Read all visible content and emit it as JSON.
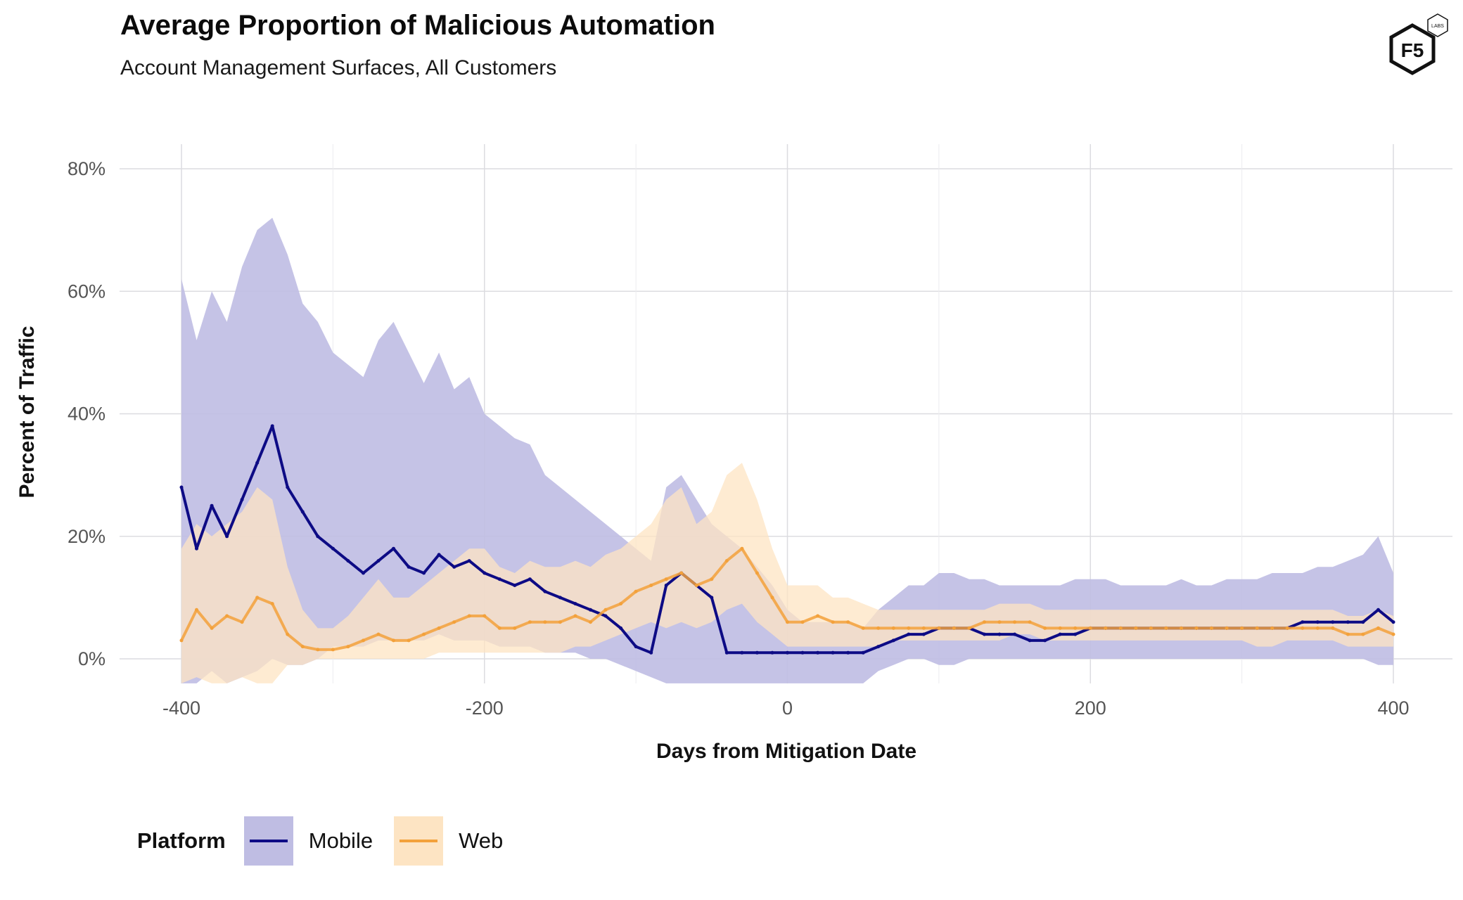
{
  "title": "Average Proportion of Malicious Automation",
  "subtitle": "Account Management Surfaces, All Customers",
  "logo": {
    "text": "F5",
    "badge": "LABS",
    "icon": "f5-labs-hexagon-logo"
  },
  "colors": {
    "mobile_line": "#0d0b85",
    "mobile_band": "#bfbde3",
    "web_line": "#f3a13b",
    "web_band": "#fde4c3",
    "grid": "#dcdce0"
  },
  "legend": {
    "title": "Platform",
    "items": [
      {
        "label": "Mobile"
      },
      {
        "label": "Web"
      }
    ]
  },
  "chart_data": {
    "type": "line",
    "xlabel": "Days from Mitigation Date",
    "ylabel": "Percent of Traffic",
    "xlim": [
      -400,
      400
    ],
    "ylim": [
      -4,
      84
    ],
    "x_ticks": [
      -400,
      -200,
      0,
      200,
      400
    ],
    "x_tick_labels": [
      "-400",
      "-200",
      "0",
      "200",
      "400"
    ],
    "y_ticks": [
      0,
      20,
      40,
      60,
      80
    ],
    "y_tick_labels": [
      "0%",
      "20%",
      "40%",
      "60%",
      "80%"
    ],
    "grid": true,
    "legend_position": "bottom-left",
    "series": [
      {
        "name": "Mobile",
        "ribbon": "confidence band",
        "x": [
          -400,
          -390,
          -380,
          -370,
          -360,
          -350,
          -340,
          -330,
          -320,
          -310,
          -300,
          -290,
          -280,
          -270,
          -260,
          -250,
          -240,
          -230,
          -220,
          -210,
          -200,
          -190,
          -180,
          -170,
          -160,
          -150,
          -140,
          -130,
          -120,
          -110,
          -100,
          -90,
          -80,
          -70,
          -60,
          -50,
          -40,
          -30,
          -20,
          -10,
          0,
          10,
          20,
          30,
          40,
          50,
          60,
          70,
          80,
          90,
          100,
          110,
          120,
          130,
          140,
          150,
          160,
          170,
          180,
          190,
          200,
          210,
          220,
          230,
          240,
          250,
          260,
          270,
          280,
          290,
          300,
          310,
          320,
          330,
          340,
          350,
          360,
          370,
          380,
          390,
          400
        ],
        "values": [
          28,
          18,
          25,
          20,
          26,
          32,
          38,
          28,
          24,
          20,
          18,
          16,
          14,
          16,
          18,
          15,
          14,
          17,
          15,
          16,
          14,
          13,
          12,
          13,
          11,
          10,
          9,
          8,
          7,
          5,
          2,
          1,
          12,
          14,
          12,
          10,
          1,
          1,
          1,
          1,
          1,
          1,
          1,
          1,
          1,
          1,
          2,
          3,
          4,
          4,
          5,
          5,
          5,
          4,
          4,
          4,
          3,
          3,
          4,
          4,
          5,
          5,
          5,
          5,
          5,
          5,
          5,
          5,
          5,
          5,
          5,
          5,
          5,
          5,
          6,
          6,
          6,
          6,
          6,
          8,
          6
        ],
        "lower": [
          -4,
          -4,
          -2,
          -4,
          -3,
          -2,
          0,
          -1,
          -1,
          0,
          2,
          2,
          2,
          3,
          3,
          3,
          3,
          4,
          3,
          3,
          3,
          2,
          2,
          2,
          1,
          1,
          1,
          0,
          0,
          -1,
          -2,
          -3,
          -4,
          -4,
          -4,
          -4,
          -4,
          -4,
          -4,
          -4,
          -4,
          -4,
          -4,
          -4,
          -4,
          -4,
          -2,
          -1,
          0,
          0,
          -1,
          -1,
          0,
          0,
          0,
          0,
          0,
          0,
          0,
          0,
          0,
          0,
          0,
          0,
          0,
          0,
          0,
          0,
          0,
          0,
          0,
          0,
          0,
          0,
          0,
          0,
          0,
          0,
          0,
          -1,
          -1
        ],
        "upper": [
          62,
          52,
          60,
          55,
          64,
          70,
          72,
          66,
          58,
          55,
          50,
          48,
          46,
          52,
          55,
          50,
          45,
          50,
          44,
          46,
          40,
          38,
          36,
          35,
          30,
          28,
          26,
          24,
          22,
          20,
          18,
          16,
          28,
          30,
          26,
          22,
          20,
          18,
          15,
          12,
          8,
          6,
          6,
          6,
          6,
          5,
          8,
          10,
          12,
          12,
          14,
          14,
          13,
          13,
          12,
          12,
          12,
          12,
          12,
          13,
          13,
          13,
          12,
          12,
          12,
          12,
          13,
          12,
          12,
          13,
          13,
          13,
          14,
          14,
          14,
          15,
          15,
          16,
          17,
          20,
          14
        ]
      },
      {
        "name": "Web",
        "ribbon": "confidence band",
        "x": [
          -400,
          -390,
          -380,
          -370,
          -360,
          -350,
          -340,
          -330,
          -320,
          -310,
          -300,
          -290,
          -280,
          -270,
          -260,
          -250,
          -240,
          -230,
          -220,
          -210,
          -200,
          -190,
          -180,
          -170,
          -160,
          -150,
          -140,
          -130,
          -120,
          -110,
          -100,
          -90,
          -80,
          -70,
          -60,
          -50,
          -40,
          -30,
          -20,
          -10,
          0,
          10,
          20,
          30,
          40,
          50,
          60,
          70,
          80,
          90,
          100,
          110,
          120,
          130,
          140,
          150,
          160,
          170,
          180,
          190,
          200,
          210,
          220,
          230,
          240,
          250,
          260,
          270,
          280,
          290,
          300,
          310,
          320,
          330,
          340,
          350,
          360,
          370,
          380,
          390,
          400
        ],
        "values": [
          3,
          8,
          5,
          7,
          6,
          10,
          9,
          4,
          2,
          1.5,
          1.5,
          2,
          3,
          4,
          3,
          3,
          4,
          5,
          6,
          7,
          7,
          5,
          5,
          6,
          6,
          6,
          7,
          6,
          8,
          9,
          11,
          12,
          13,
          14,
          12,
          13,
          16,
          18,
          14,
          10,
          6,
          6,
          7,
          6,
          6,
          5,
          5,
          5,
          5,
          5,
          5,
          5,
          5,
          6,
          6,
          6,
          6,
          5,
          5,
          5,
          5,
          5,
          5,
          5,
          5,
          5,
          5,
          5,
          5,
          5,
          5,
          5,
          5,
          5,
          5,
          5,
          5,
          4,
          4,
          5,
          4
        ],
        "lower": [
          -4,
          -3,
          -4,
          -4,
          -3,
          -4,
          -4,
          -1,
          -1,
          0,
          0,
          0,
          0,
          0,
          0,
          0,
          0,
          1,
          1,
          1,
          1,
          1,
          1,
          1,
          1,
          1,
          2,
          2,
          3,
          4,
          5,
          6,
          5,
          6,
          5,
          6,
          8,
          9,
          6,
          4,
          2,
          2,
          2,
          2,
          2,
          2,
          2,
          3,
          3,
          3,
          3,
          3,
          3,
          3,
          3,
          4,
          4,
          3,
          3,
          3,
          3,
          3,
          3,
          3,
          3,
          3,
          3,
          3,
          3,
          3,
          3,
          2,
          2,
          3,
          3,
          3,
          3,
          2,
          2,
          2,
          2
        ],
        "upper": [
          18,
          22,
          20,
          22,
          24,
          28,
          26,
          15,
          8,
          5,
          5,
          7,
          10,
          13,
          10,
          10,
          12,
          14,
          16,
          18,
          18,
          15,
          14,
          16,
          15,
          15,
          16,
          15,
          17,
          18,
          20,
          22,
          26,
          28,
          22,
          24,
          30,
          32,
          26,
          18,
          12,
          12,
          12,
          10,
          10,
          9,
          8,
          8,
          8,
          8,
          8,
          8,
          8,
          8,
          9,
          9,
          9,
          8,
          8,
          8,
          8,
          8,
          8,
          8,
          8,
          8,
          8,
          8,
          8,
          8,
          8,
          8,
          8,
          8,
          8,
          8,
          8,
          7,
          7,
          8,
          7
        ]
      }
    ]
  }
}
